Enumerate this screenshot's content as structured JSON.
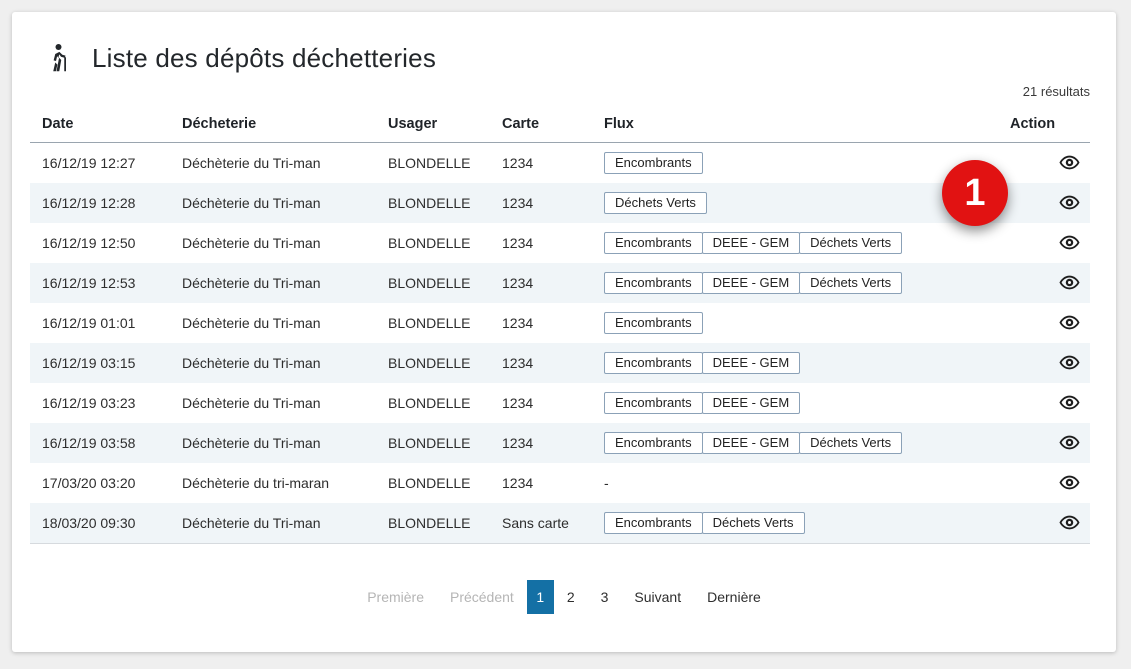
{
  "colors": {
    "accent_blue": "#1470a5",
    "annotation_red": "#e11212",
    "row_stripe": "#f0f5f8",
    "badge_border": "#8ba1b7"
  },
  "header": {
    "title": "Liste des dépôts déchetteries",
    "icon": "person-hiking-icon"
  },
  "results_count": "21 résultats",
  "table": {
    "columns": [
      "Date",
      "Décheterie",
      "Usager",
      "Carte",
      "Flux",
      "Action"
    ],
    "flux_empty_placeholder": "-",
    "rows": [
      {
        "date": "16/12/19 12:27",
        "dechetterie": "Déchèterie du Tri-man",
        "usager": "BLONDELLE",
        "carte": "1234",
        "flux": [
          "Encombrants"
        ]
      },
      {
        "date": "16/12/19 12:28",
        "dechetterie": "Déchèterie du Tri-man",
        "usager": "BLONDELLE",
        "carte": "1234",
        "flux": [
          "Déchets Verts"
        ]
      },
      {
        "date": "16/12/19 12:50",
        "dechetterie": "Déchèterie du Tri-man",
        "usager": "BLONDELLE",
        "carte": "1234",
        "flux": [
          "Encombrants",
          "DEEE - GEM",
          "Déchets Verts"
        ]
      },
      {
        "date": "16/12/19 12:53",
        "dechetterie": "Déchèterie du Tri-man",
        "usager": "BLONDELLE",
        "carte": "1234",
        "flux": [
          "Encombrants",
          "DEEE - GEM",
          "Déchets Verts"
        ]
      },
      {
        "date": "16/12/19 01:01",
        "dechetterie": "Déchèterie du Tri-man",
        "usager": "BLONDELLE",
        "carte": "1234",
        "flux": [
          "Encombrants"
        ]
      },
      {
        "date": "16/12/19 03:15",
        "dechetterie": "Déchèterie du Tri-man",
        "usager": "BLONDELLE",
        "carte": "1234",
        "flux": [
          "Encombrants",
          "DEEE - GEM"
        ]
      },
      {
        "date": "16/12/19 03:23",
        "dechetterie": "Déchèterie du Tri-man",
        "usager": "BLONDELLE",
        "carte": "1234",
        "flux": [
          "Encombrants",
          "DEEE - GEM"
        ]
      },
      {
        "date": "16/12/19 03:58",
        "dechetterie": "Déchèterie du Tri-man",
        "usager": "BLONDELLE",
        "carte": "1234",
        "flux": [
          "Encombrants",
          "DEEE - GEM",
          "Déchets Verts"
        ]
      },
      {
        "date": "17/03/20 03:20",
        "dechetterie": "Déchèterie du tri-maran",
        "usager": "BLONDELLE",
        "carte": "1234",
        "flux": []
      },
      {
        "date": "18/03/20 09:30",
        "dechetterie": "Déchèterie du Tri-man",
        "usager": "BLONDELLE",
        "carte": "Sans carte",
        "flux": [
          "Encombrants",
          "Déchets Verts"
        ]
      }
    ]
  },
  "annotation": {
    "step_number": "1"
  },
  "pagination": {
    "items": [
      {
        "label": "Première",
        "state": "disabled"
      },
      {
        "label": "Précédent",
        "state": "disabled"
      },
      {
        "label": "1",
        "state": "active"
      },
      {
        "label": "2",
        "state": "normal"
      },
      {
        "label": "3",
        "state": "normal"
      },
      {
        "label": "Suivant",
        "state": "normal"
      },
      {
        "label": "Dernière",
        "state": "normal"
      }
    ]
  }
}
